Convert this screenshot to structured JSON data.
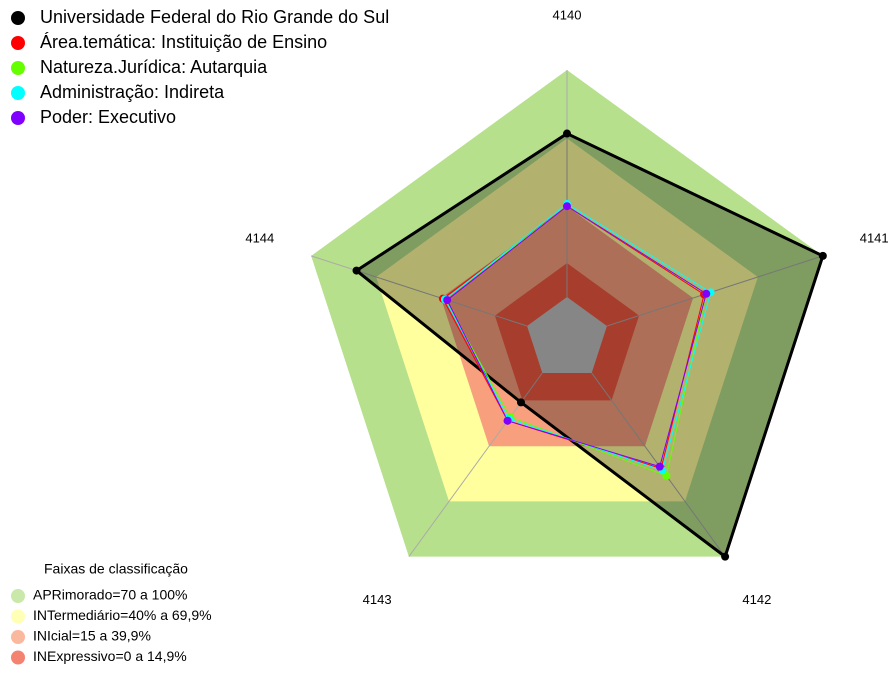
{
  "chart_data": {
    "type": "radar",
    "categories": [
      "4140",
      "4141",
      "4142",
      "4143",
      "4144"
    ],
    "rlim": [
      0,
      100
    ],
    "series": [
      {
        "name": "Universidade Federal do Rio Grande do Sul",
        "color": "#000000",
        "values": [
          72,
          100,
          100,
          16,
          79
        ]
      },
      {
        "name": "Área.temática: Instituição de Ensino",
        "color": "#ff0000",
        "values": [
          40,
          45,
          52,
          26,
          39
        ]
      },
      {
        "name": "Natureza.Jurídica: Autarquia",
        "color": "#66ff00",
        "values": [
          40,
          46,
          56,
          24,
          38
        ]
      },
      {
        "name": "Administração: Indireta",
        "color": "#00ffff",
        "values": [
          41,
          48,
          53,
          25,
          38
        ]
      },
      {
        "name": "Poder: Executivo",
        "color": "#8000ff",
        "values": [
          40,
          46,
          51,
          26,
          37
        ]
      }
    ],
    "bands_title": "Faixas de classificação",
    "bands": [
      {
        "label": "APRimorado=70 a 100%",
        "min": 70,
        "max": 100,
        "color": "#b7e08c"
      },
      {
        "label": "INTermediário=40% a 69,9%",
        "min": 40,
        "max": 69.9,
        "color": "#ffff9e"
      },
      {
        "label": "INIcial=15 a 39,9%",
        "min": 15,
        "max": 39.9,
        "color": "#f8a07e"
      },
      {
        "label": "INExpressivo=0 a 14,9%",
        "min": 0,
        "max": 14.9,
        "color": "#f05840"
      }
    ]
  }
}
